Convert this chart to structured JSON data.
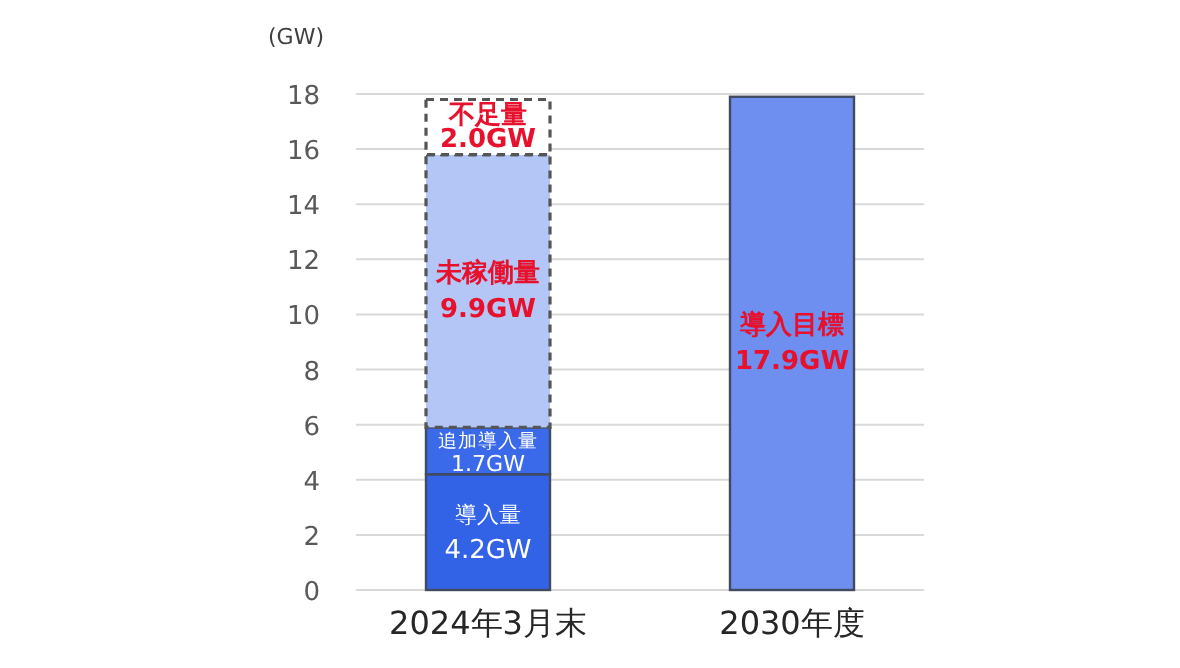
{
  "chart_data": {
    "type": "bar",
    "stacked": true,
    "ylabel": "(GW)",
    "categories": [
      "2024年3月末",
      "2030年度"
    ],
    "series": [
      {
        "name": "導入量",
        "color": "#3262e6",
        "values": [
          4.2,
          null
        ],
        "value_labels": [
          "4.2GW",
          null
        ]
      },
      {
        "name": "追加導入量",
        "color": "#3a6aea",
        "values": [
          1.7,
          null
        ],
        "value_labels": [
          "1.7GW",
          null
        ]
      },
      {
        "name": "未稼働量",
        "color": "#b3c6f5",
        "values": [
          9.9,
          null
        ],
        "value_labels": [
          "9.9GW",
          null
        ],
        "line_style": "dashed"
      },
      {
        "name": "不足量",
        "color": "#ffffff",
        "values": [
          2.0,
          null
        ],
        "value_labels": [
          "2.0GW",
          null
        ],
        "line_style": "dashed"
      },
      {
        "name": "導入目標",
        "color": "#6f8ff0",
        "values": [
          null,
          17.9
        ],
        "value_labels": [
          null,
          "17.9GW"
        ]
      }
    ],
    "ylim": [
      0,
      18
    ],
    "yticks": [
      0,
      2,
      4,
      6,
      8,
      10,
      12,
      14,
      16,
      18
    ],
    "grid": "y",
    "legend": false
  }
}
